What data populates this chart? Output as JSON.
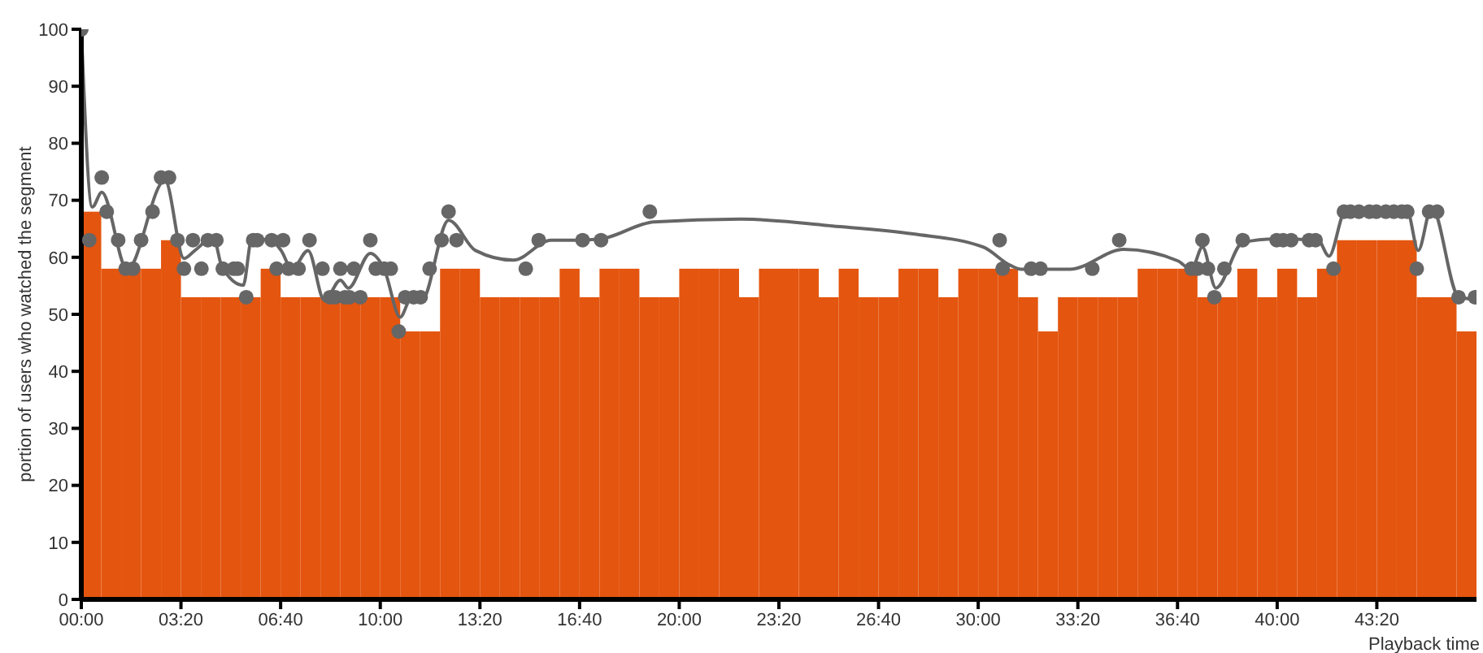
{
  "chart_data": {
    "type": "bar",
    "xlabel": "Playback time",
    "ylabel": "portion of users who watched the segment",
    "xlim": [
      0,
      2800
    ],
    "xticks": [
      {
        "value": 0,
        "label": "00:00"
      },
      {
        "value": 200,
        "label": "03:20"
      },
      {
        "value": 400,
        "label": "06:40"
      },
      {
        "value": 600,
        "label": "10:00"
      },
      {
        "value": 800,
        "label": "13:20"
      },
      {
        "value": 1000,
        "label": "16:40"
      },
      {
        "value": 1200,
        "label": "20:00"
      },
      {
        "value": 1400,
        "label": "23:20"
      },
      {
        "value": 1600,
        "label": "26:40"
      },
      {
        "value": 1800,
        "label": "30:00"
      },
      {
        "value": 2000,
        "label": "33:20"
      },
      {
        "value": 2200,
        "label": "36:40"
      },
      {
        "value": 2400,
        "label": "40:00"
      },
      {
        "value": 2600,
        "label": "43:20"
      }
    ],
    "ylim": [
      0,
      100
    ],
    "yticks": [
      0,
      10,
      20,
      30,
      40,
      50,
      60,
      70,
      80,
      90,
      100
    ],
    "grid": false,
    "legend": false,
    "series": [
      {
        "color": "#e4550f",
        "x": [
          20,
          60,
          100,
          140,
          180,
          220,
          260,
          300,
          340,
          380,
          420,
          460,
          500,
          540,
          580,
          620,
          660,
          700,
          740,
          780,
          820,
          860,
          900,
          940,
          980,
          1020,
          1060,
          1100,
          1140,
          1180,
          1220,
          1260,
          1300,
          1340,
          1380,
          1420,
          1460,
          1500,
          1540,
          1580,
          1620,
          1660,
          1700,
          1740,
          1780,
          1820,
          1860,
          1900,
          1940,
          1980,
          2020,
          2060,
          2100,
          2140,
          2180,
          2220,
          2260,
          2300,
          2340,
          2380,
          2420,
          2460,
          2500,
          2540,
          2580,
          2620,
          2660,
          2700,
          2740,
          2780
        ],
        "values": [
          68,
          58,
          58,
          58,
          63,
          53,
          53,
          53,
          53,
          58,
          53,
          53,
          53,
          53,
          53,
          53,
          47,
          47,
          58,
          58,
          53,
          53,
          53,
          53,
          58,
          53,
          58,
          58,
          53,
          53,
          58,
          58,
          58,
          53,
          58,
          58,
          58,
          53,
          58,
          53,
          53,
          58,
          58,
          53,
          58,
          58,
          58,
          53,
          47,
          53,
          53,
          53,
          53,
          58,
          58,
          58,
          53,
          53,
          58,
          53,
          58,
          53,
          58,
          63,
          63,
          63,
          63,
          53,
          53,
          47
        ]
      },
      {
        "type": "scatter",
        "color": "#666666",
        "marker": "circle",
        "x": [
          0,
          16,
          41,
          51,
          74,
          89,
          104,
          120,
          143,
          160,
          176,
          193,
          206,
          224,
          241,
          254,
          271,
          284,
          306,
          314,
          331,
          345,
          353,
          382,
          392,
          405,
          416,
          436,
          458,
          484,
          499,
          510,
          520,
          529,
          538,
          547,
          560,
          580,
          591,
          608,
          621,
          637,
          650,
          667,
          681,
          699,
          723,
          737,
          753,
          892,
          918,
          1006,
          1043,
          1141,
          1843,
          1849,
          1906,
          1925,
          2029,
          2083,
          2228,
          2240,
          2250,
          2261,
          2274,
          2294,
          2331,
          2399,
          2412,
          2428,
          2464,
          2477,
          2513,
          2534,
          2547,
          2564,
          2585,
          2599,
          2618,
          2634,
          2650,
          2661,
          2680,
          2705,
          2721,
          2764,
          2797
        ],
        "values": [
          100,
          63,
          74,
          68,
          63,
          58,
          58,
          63,
          68,
          74,
          74,
          63,
          58,
          63,
          58,
          63,
          63,
          58,
          58,
          58,
          53,
          63,
          63,
          63,
          58,
          63,
          58,
          58,
          63,
          58,
          53,
          53,
          58,
          53,
          53,
          58,
          53,
          63,
          58,
          58,
          58,
          47,
          53,
          53,
          53,
          58,
          63,
          68,
          63,
          58,
          63,
          63,
          63,
          68,
          63,
          58,
          58,
          58,
          58,
          63,
          58,
          58,
          63,
          58,
          53,
          58,
          63,
          63,
          63,
          63,
          63,
          63,
          58,
          68,
          68,
          68,
          68,
          68,
          68,
          68,
          68,
          68,
          58,
          68,
          68,
          53,
          53
        ]
      },
      {
        "type": "line",
        "color": "#666666",
        "marker": "none",
        "x": [
          0,
          22,
          41,
          92,
          168,
          206,
          228,
          265,
          282,
          325,
          342,
          380,
          401,
          423,
          455,
          488,
          520,
          536,
          580,
          608,
          640,
          661,
          683,
          737,
          791,
          867,
          943,
          997,
          1041,
          1149,
          1323,
          1507,
          1670,
          1810,
          1864,
          1886,
          1984,
          2092,
          2200,
          2228,
          2250,
          2277,
          2331,
          2396,
          2482,
          2504,
          2537,
          2661,
          2683,
          2710,
          2764,
          2797
        ],
        "values": [
          100,
          68.8,
          71.4,
          57.9,
          73.5,
          59.8,
          61.2,
          63.5,
          58.4,
          55.1,
          63.2,
          63,
          61.2,
          57.9,
          61.2,
          52.4,
          56,
          54.6,
          60.7,
          57.9,
          49.5,
          52.6,
          52.4,
          66.5,
          61.2,
          59.5,
          63,
          63,
          63.2,
          66.2,
          66.7,
          65.5,
          64.1,
          61.8,
          58.6,
          57.9,
          57.9,
          61.4,
          59.4,
          57.9,
          61.8,
          54.6,
          62.6,
          63.2,
          63,
          60.2,
          68.1,
          68.1,
          61.2,
          68.8,
          53.1,
          52.6
        ]
      }
    ]
  }
}
